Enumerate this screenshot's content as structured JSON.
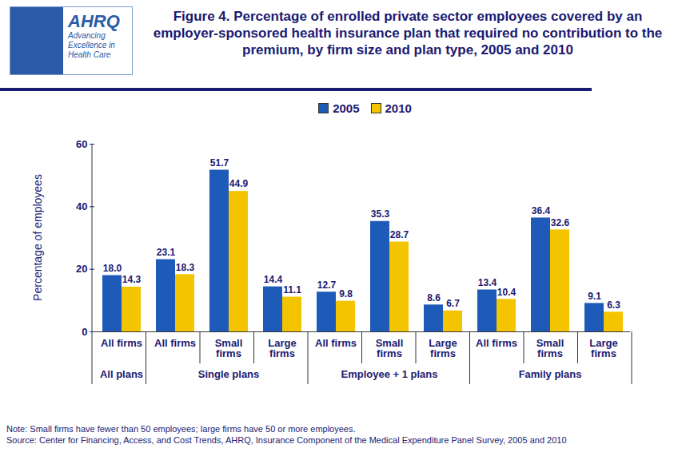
{
  "chart_data": {
    "type": "bar",
    "title": "Figure 4. Percentage of enrolled private sector employees covered by an employer-sponsored health insurance plan that required no contribution to the premium, by firm size and plan type, 2005 and 2010",
    "logo_text": [
      "AHRQ",
      "Advancing Excellence in Health Care"
    ],
    "ylabel": "Percentage of employees",
    "categories": [
      "All firms",
      "All firms",
      "Small firms",
      "Large firms",
      "All firms",
      "Small firms",
      "Large firms",
      "All firms",
      "Small firms",
      "Large firms"
    ],
    "category_groups": [
      "All plans",
      "Single plans",
      "Single plans",
      "Single plans",
      "Employee + 1 plans",
      "Employee + 1 plans",
      "Employee + 1 plans",
      "Family plans",
      "Family plans",
      "Family plans"
    ],
    "series": [
      {
        "name": "2005",
        "color": "#1e5bb8",
        "values": [
          18.0,
          23.1,
          51.7,
          14.4,
          12.7,
          35.3,
          8.6,
          13.4,
          36.4,
          9.1
        ],
        "value_labels": [
          "18.0",
          "23.1",
          "51.7",
          "14.4",
          "12.7",
          "35.3",
          "8.6",
          "13.4",
          "36.4",
          "9.1"
        ]
      },
      {
        "name": "2010",
        "color": "#f5c400",
        "values": [
          14.3,
          18.3,
          44.9,
          11.1,
          9.8,
          28.7,
          6.7,
          10.4,
          32.6,
          6.3
        ],
        "value_labels": [
          "14.3",
          "18.3",
          "44.9",
          "11.1",
          "9.8",
          "28.7",
          "6.7",
          "10.4",
          "32.6",
          "6.3"
        ]
      }
    ],
    "ylim": [
      0,
      60
    ],
    "yticks": [
      0,
      20,
      40,
      60
    ],
    "grid": false,
    "legend": "top",
    "data_labels": true,
    "note": "Note: Small firms have fewer than 50 employees; large firms have 50 or more employees.",
    "source": "Source: Center for Financing, Access, and Cost Trends, AHRQ, Insurance Component of the Medical Expenditure Panel Survey,  2005 and 2010"
  }
}
